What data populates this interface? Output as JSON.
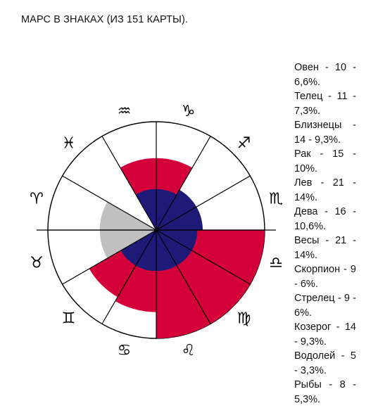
{
  "title": "МАРС В ЗНАКАХ (ИЗ 151 КАРТЫ).",
  "legend": [
    "Овен - 10 - 6,6%.",
    "Телец - 11 - 7,3%.",
    "Близнецы - 14 - 9,3%.",
    "Рак - 15 - 10%.",
    "Лев - 21 - 14%.",
    "Дева - 16 - 10,6%.",
    "Весы - 21 - 14%.",
    "Скорпион - 9 - 6%.",
    "Стрелец - 9 - 6%.",
    "Козерог - 14 - 9,3%.",
    "Водолей - 5 - 3,3%.",
    "Рыбы - 8 - 5,3%."
  ],
  "chart_data": {
    "type": "polar-area",
    "title": "МАРС В ЗНАКАХ (ИЗ 151 КАРТЫ).",
    "total": 151,
    "max_percent": 14,
    "signs": [
      {
        "glyph": "♈",
        "name": "Овен",
        "count": 10,
        "percent": 6.6,
        "color": "#ffffff"
      },
      {
        "glyph": "♉",
        "name": "Телец",
        "count": 11,
        "percent": 7.3,
        "color": "#ffffff"
      },
      {
        "glyph": "♊",
        "name": "Близнецы",
        "count": 14,
        "percent": 9.3,
        "color": "#ffffff"
      },
      {
        "glyph": "♋",
        "name": "Рак",
        "count": 15,
        "percent": 10,
        "color": "#ffffff"
      },
      {
        "glyph": "♌",
        "name": "Лев",
        "count": 21,
        "percent": 14,
        "color": "#ffffff"
      },
      {
        "glyph": "♍",
        "name": "Дева",
        "count": 16,
        "percent": 10.6,
        "color": "#ffffff"
      },
      {
        "glyph": "♎",
        "name": "Весы",
        "count": 21,
        "percent": 14,
        "color": "#ffffff"
      },
      {
        "glyph": "♏",
        "name": "Скорпион",
        "count": 9,
        "percent": 6,
        "color": "#ffffff"
      },
      {
        "glyph": "♐",
        "name": "Стрелец",
        "count": 9,
        "percent": 6,
        "color": "#ffffff"
      },
      {
        "glyph": "♑",
        "name": "Козерог",
        "count": 14,
        "percent": 9.3,
        "color": "#ffffff"
      },
      {
        "glyph": "♒",
        "name": "Водолей",
        "count": 5,
        "percent": 3.3,
        "color": "#ffffff"
      },
      {
        "glyph": "♓",
        "name": "Рыбы",
        "count": 8,
        "percent": 5.3,
        "color": "#ffffff"
      }
    ],
    "wedges": [
      {
        "from_sign": "Лев",
        "to_sign": "Весы",
        "percent": 14,
        "color": "#d4003a"
      },
      {
        "from_sign": "Рак",
        "to_sign": "Дева",
        "percent": 10.6,
        "color": "#d4003a"
      },
      {
        "from_sign": "Близнецы",
        "to_sign": "Рак",
        "percent": 10,
        "color": "#d4003a"
      },
      {
        "from_sign": "Козерог",
        "to_sign": "Водолей",
        "percent": 9.3,
        "color": "#d4003a"
      },
      {
        "from_sign": "Скорпион",
        "to_sign": "Стрелец",
        "percent": 6,
        "color": "#1e1a78"
      },
      {
        "from_sign": "Рыбы",
        "to_sign": "Овен",
        "percent": 5.3,
        "color": "#1e1a78"
      },
      {
        "from_sign": "Овен",
        "to_sign": "Телец",
        "percent": 7.3,
        "color": "#c0c0c0"
      }
    ],
    "colors": {
      "fire_earth_red": "#d4003a",
      "dark_blue": "#1e1a78",
      "grey": "#c0c0c0",
      "outline": "#000000"
    }
  }
}
